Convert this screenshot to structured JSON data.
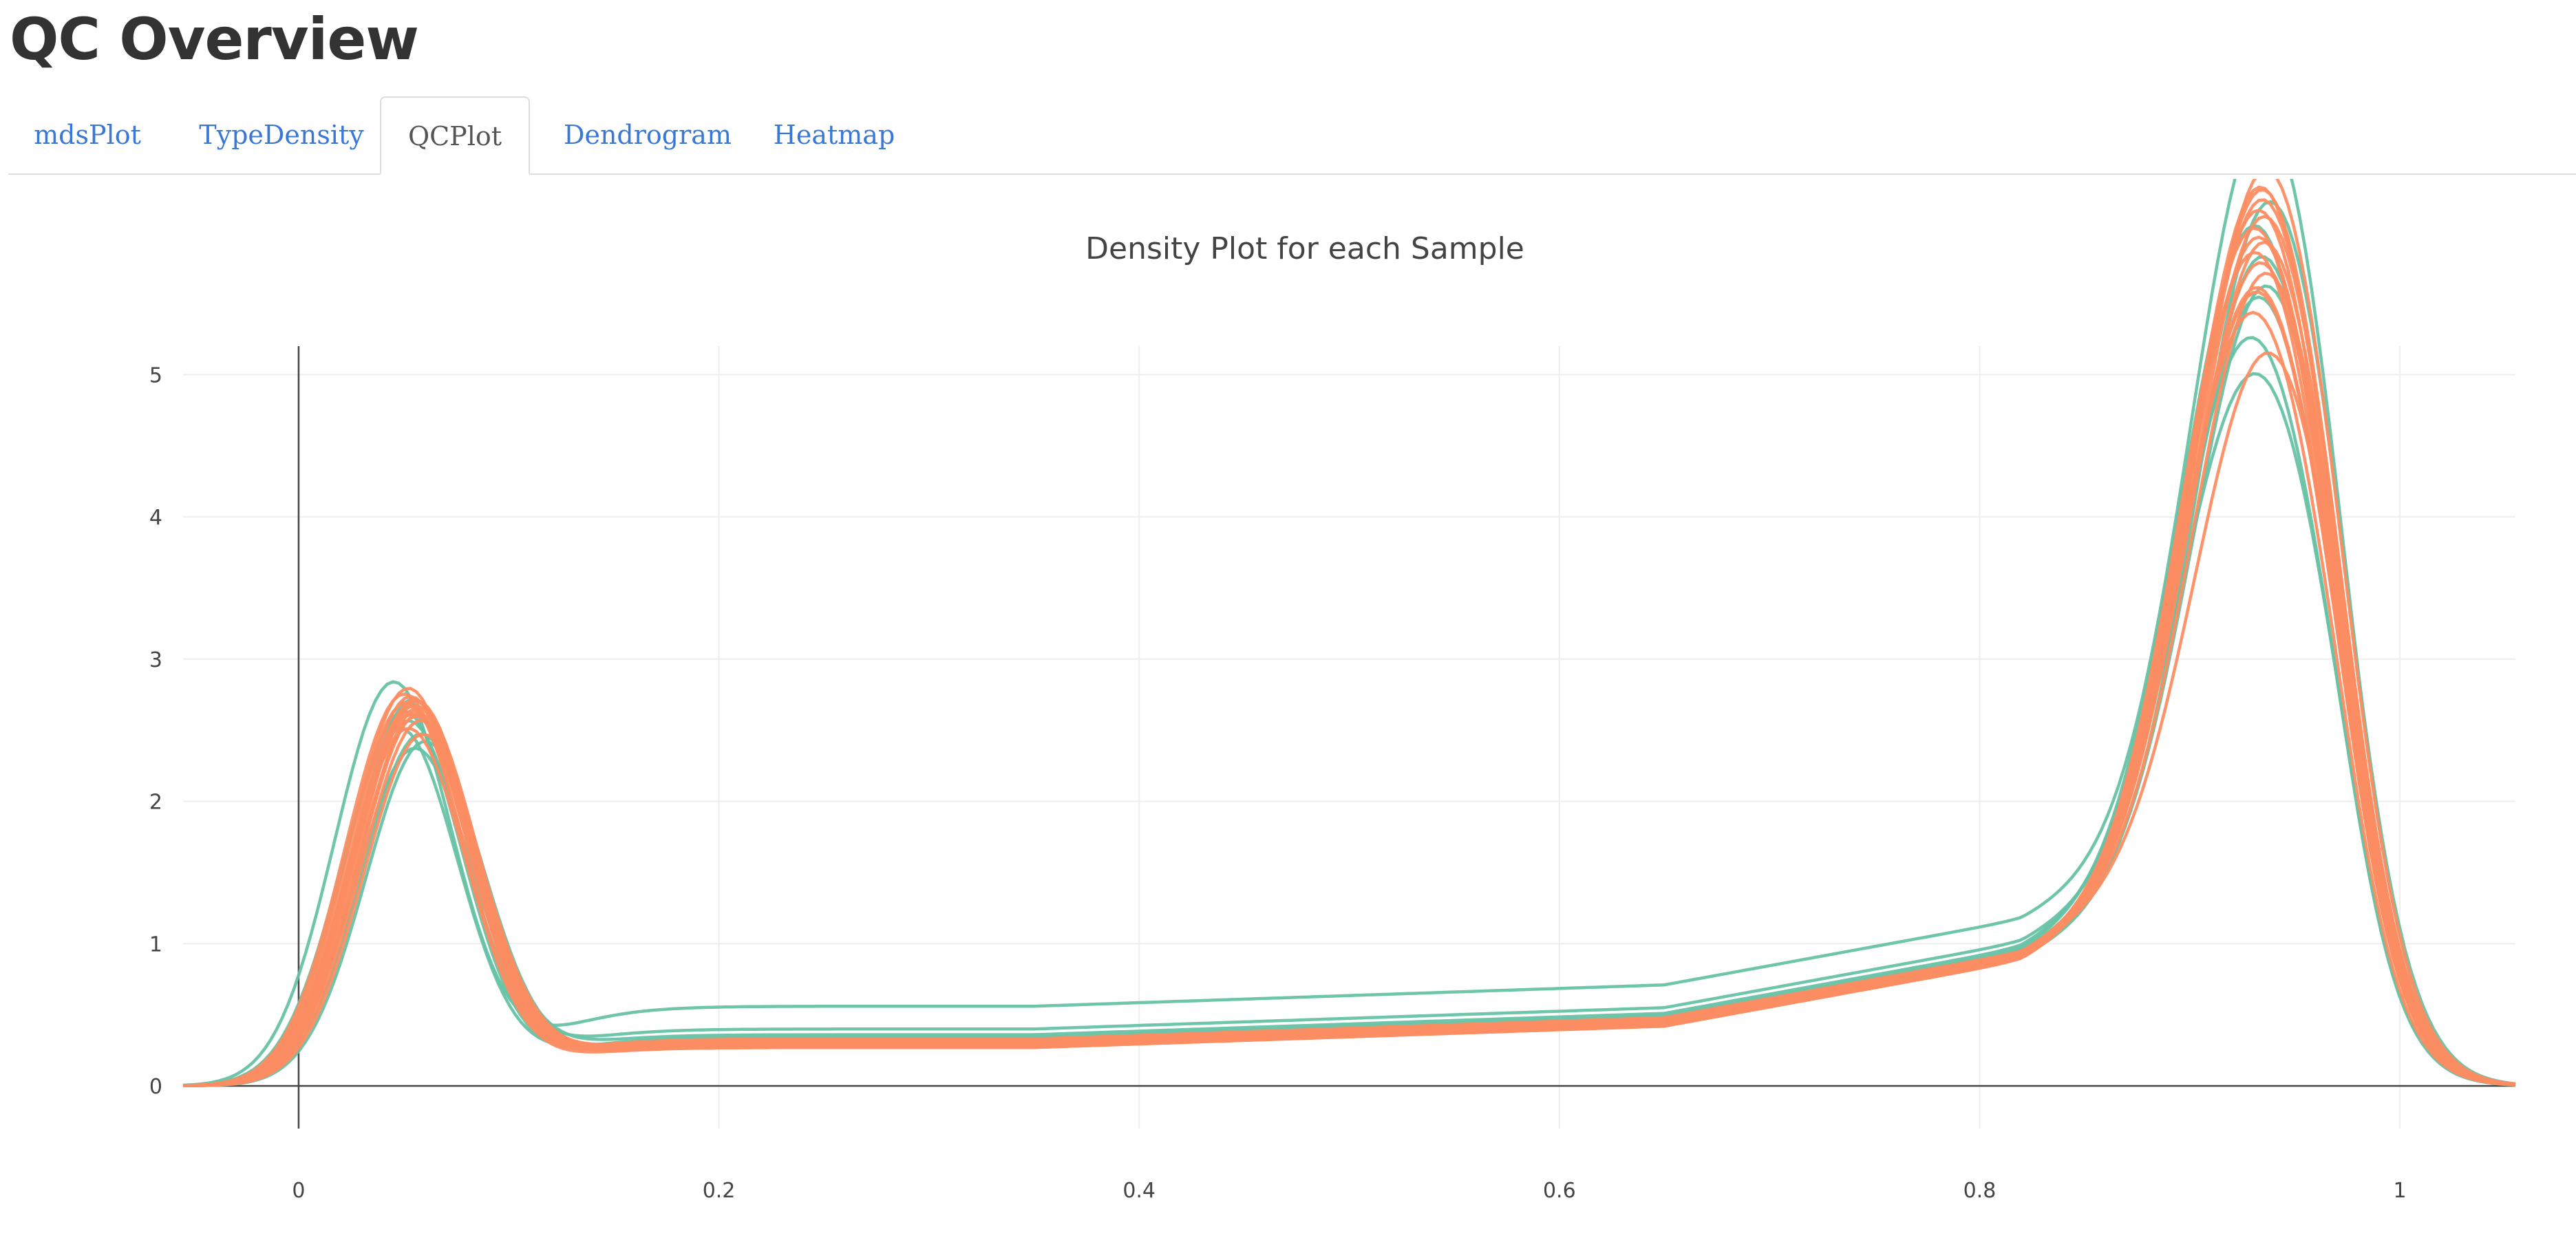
{
  "page": {
    "title": "QC Overview"
  },
  "tabs": [
    {
      "label": "mdsPlot",
      "active": false
    },
    {
      "label": "TypeDensity",
      "active": false
    },
    {
      "label": "QCPlot",
      "active": true
    },
    {
      "label": "Dendrogram",
      "active": false
    },
    {
      "label": "Heatmap",
      "active": false
    }
  ],
  "colors": {
    "tab_link": "#3a77d6",
    "series_a": "#66c2a5",
    "series_b": "#fc8d62"
  },
  "chart_data": {
    "type": "line",
    "title": "Density Plot for each Sample",
    "xlabel": "",
    "ylabel": "",
    "xlim": [
      -0.055,
      1.055
    ],
    "ylim": [
      -0.3,
      5.2
    ],
    "x_ticks": [
      0,
      0.2,
      0.4,
      0.6,
      0.8,
      1
    ],
    "x_tick_labels": [
      "0",
      "0.2",
      "0.4",
      "0.6",
      "0.8",
      "1"
    ],
    "y_ticks": [
      0,
      1,
      2,
      3,
      4,
      5
    ],
    "y_tick_labels": [
      "0",
      "1",
      "2",
      "3",
      "4",
      "5"
    ],
    "grid": true,
    "legend": false,
    "series_groups": [
      {
        "color": "#66c2a5",
        "samples": [
          {
            "peak1_x": 0.045,
            "peak1_y": 2.82,
            "peak2_x": 0.935,
            "peak2_y": 4.92,
            "flat": 0.56
          },
          {
            "peak1_x": 0.055,
            "peak1_y": 2.35,
            "peak2_x": 0.93,
            "peak2_y": 3.3,
            "flat": 0.4
          },
          {
            "peak1_x": 0.058,
            "peak1_y": 2.45,
            "peak2_x": 0.928,
            "peak2_y": 3.6,
            "flat": 0.36
          },
          {
            "peak1_x": 0.052,
            "peak1_y": 2.55,
            "peak2_x": 0.932,
            "peak2_y": 3.9,
            "flat": 0.33
          },
          {
            "peak1_x": 0.05,
            "peak1_y": 2.62,
            "peak2_x": 0.936,
            "peak2_y": 4.0,
            "flat": 0.3
          },
          {
            "peak1_x": 0.054,
            "peak1_y": 2.7,
            "peak2_x": 0.934,
            "peak2_y": 4.2,
            "flat": 0.31
          },
          {
            "peak1_x": 0.048,
            "peak1_y": 2.5,
            "peak2_x": 0.93,
            "peak2_y": 4.4,
            "flat": 0.34
          },
          {
            "peak1_x": 0.06,
            "peak1_y": 2.4,
            "peak2_x": 0.938,
            "peak2_y": 4.6,
            "flat": 0.29
          }
        ]
      },
      {
        "color": "#fc8d62",
        "samples": [
          {
            "peak1_x": 0.052,
            "peak1_y": 2.78,
            "peak2_x": 0.936,
            "peak2_y": 4.82,
            "flat": 0.3
          },
          {
            "peak1_x": 0.055,
            "peak1_y": 2.7,
            "peak2_x": 0.934,
            "peak2_y": 4.7,
            "flat": 0.28
          },
          {
            "peak1_x": 0.053,
            "peak1_y": 2.65,
            "peak2_x": 0.932,
            "peak2_y": 4.55,
            "flat": 0.29
          },
          {
            "peak1_x": 0.057,
            "peak1_y": 2.6,
            "peak2_x": 0.93,
            "peak2_y": 4.45,
            "flat": 0.27
          },
          {
            "peak1_x": 0.051,
            "peak1_y": 2.68,
            "peak2_x": 0.935,
            "peak2_y": 4.3,
            "flat": 0.31
          },
          {
            "peak1_x": 0.056,
            "peak1_y": 2.58,
            "peak2_x": 0.933,
            "peak2_y": 4.15,
            "flat": 0.32
          },
          {
            "peak1_x": 0.054,
            "peak1_y": 2.62,
            "peak2_x": 0.931,
            "peak2_y": 4.0,
            "flat": 0.3
          },
          {
            "peak1_x": 0.058,
            "peak1_y": 2.55,
            "peak2_x": 0.929,
            "peak2_y": 3.85,
            "flat": 0.28
          },
          {
            "peak1_x": 0.053,
            "peak1_y": 2.72,
            "peak2_x": 0.937,
            "peak2_y": 3.5,
            "flat": 0.33
          },
          {
            "peak1_x": 0.055,
            "peak1_y": 2.66,
            "peak2_x": 0.934,
            "peak2_y": 4.62,
            "flat": 0.29
          },
          {
            "peak1_x": 0.052,
            "peak1_y": 2.5,
            "peak2_x": 0.932,
            "peak2_y": 4.38,
            "flat": 0.27
          },
          {
            "peak1_x": 0.059,
            "peak1_y": 2.45,
            "peak2_x": 0.93,
            "peak2_y": 4.25,
            "flat": 0.3
          },
          {
            "peak1_x": 0.05,
            "peak1_y": 2.74,
            "peak2_x": 0.936,
            "peak2_y": 4.08,
            "flat": 0.31
          },
          {
            "peak1_x": 0.056,
            "peak1_y": 2.69,
            "peak2_x": 0.933,
            "peak2_y": 4.72,
            "flat": 0.28
          },
          {
            "peak1_x": 0.054,
            "peak1_y": 2.6,
            "peak2_x": 0.935,
            "peak2_y": 4.5,
            "flat": 0.29
          },
          {
            "peak1_x": 0.057,
            "peak1_y": 2.64,
            "peak2_x": 0.931,
            "peak2_y": 3.95,
            "flat": 0.32
          }
        ]
      }
    ]
  }
}
